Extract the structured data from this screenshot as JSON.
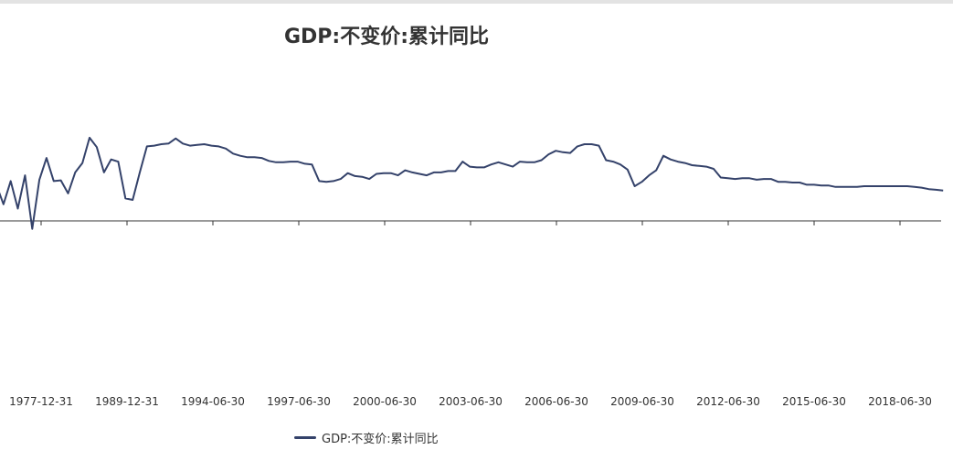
{
  "chart_data": {
    "type": "line",
    "title": "GDP:不变价:累计同比",
    "series": [
      {
        "name": "GDP:不变价:累计同比",
        "color": "#34426a",
        "values": [
          5.0,
          2.3,
          5.5,
          1.7,
          6.3,
          -1.1,
          5.7,
          8.7,
          5.5,
          5.6,
          3.8,
          6.7,
          8.0,
          11.5,
          10.2,
          6.7,
          8.5,
          8.2,
          3.1,
          2.9,
          6.7,
          10.3,
          10.4,
          10.6,
          10.7,
          11.4,
          10.7,
          10.4,
          10.5,
          10.6,
          10.4,
          10.3,
          10.0,
          9.3,
          9.0,
          8.8,
          8.8,
          8.7,
          8.3,
          8.1,
          8.1,
          8.2,
          8.2,
          7.9,
          7.8,
          5.5,
          5.4,
          5.5,
          5.8,
          6.6,
          6.2,
          6.1,
          5.8,
          6.5,
          6.6,
          6.6,
          6.3,
          7.0,
          6.7,
          6.5,
          6.3,
          6.7,
          6.7,
          6.9,
          6.9,
          8.2,
          7.5,
          7.4,
          7.4,
          7.8,
          8.1,
          7.8,
          7.5,
          8.2,
          8.1,
          8.1,
          8.4,
          9.2,
          9.7,
          9.5,
          9.4,
          10.3,
          10.6,
          10.6,
          10.4,
          8.4,
          8.2,
          7.8,
          7.1,
          4.8,
          5.4,
          6.3,
          7.0,
          9.0,
          8.5,
          8.2,
          8.0,
          7.7,
          7.6,
          7.5,
          7.2,
          6.0,
          5.9,
          5.8,
          5.9,
          5.9,
          5.7,
          5.8,
          5.8,
          5.4,
          5.4,
          5.3,
          5.3,
          5.0,
          5.0,
          4.9,
          4.9,
          4.7,
          4.7,
          4.7,
          4.7,
          4.8,
          4.8,
          4.8,
          4.8,
          4.8,
          4.8,
          4.8,
          4.7,
          4.6,
          4.4,
          4.3,
          4.2
        ]
      }
    ],
    "x_tick_labels": [
      "1977-12-31",
      "1989-12-31",
      "1994-06-30",
      "1997-06-30",
      "2000-06-30",
      "2003-06-30",
      "2006-06-30",
      "2009-06-30",
      "2012-06-30",
      "2015-06-30",
      "2018-06-30"
    ],
    "ylim": [
      -25,
      25
    ],
    "grid": false,
    "y_axis_labels_visible": false,
    "legend": "bottom-left"
  }
}
